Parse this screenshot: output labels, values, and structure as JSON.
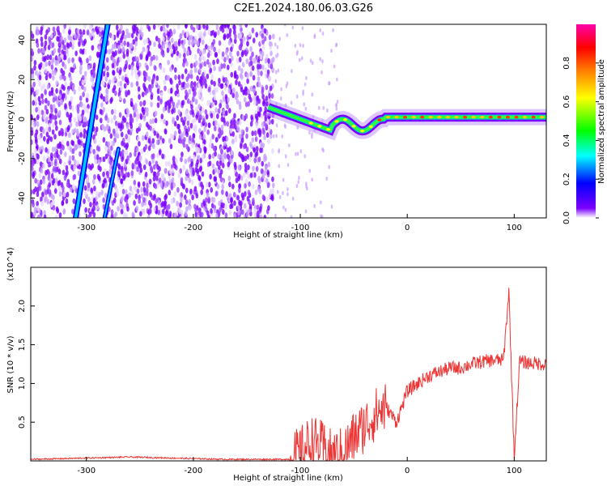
{
  "title": "C2E1.2024.180.06.03.G26",
  "colors": {
    "snr_line": "#ee3333",
    "frame": "#000000"
  },
  "chart_data": [
    {
      "type": "heatmap",
      "xlabel": "Height of straight line (km)",
      "ylabel": "Frequency (Hz)",
      "xlim": [
        -352,
        130
      ],
      "ylim": [
        -50,
        48
      ],
      "xticks": [
        -300,
        -200,
        -100,
        0,
        100
      ],
      "yticks": [
        -40,
        -20,
        0,
        20,
        40
      ],
      "colorbar": {
        "label": "Normalized spectral amplitude",
        "range": [
          0.0,
          1.0
        ],
        "ticks": [
          0.0,
          0.2,
          0.4,
          0.6,
          0.8
        ],
        "colors": [
          "#ffffff",
          "#7b00ff",
          "#0000ff",
          "#00ffff",
          "#00ff00",
          "#ffff00",
          "#ff8800",
          "#ff0000",
          "#ff00aa"
        ]
      },
      "features": [
        {
          "name": "diagonal streak 1",
          "x": [
            -310,
            -280
          ],
          "y": [
            -50,
            48
          ],
          "amplitude": 0.25
        },
        {
          "name": "diagonal streak 2",
          "x": [
            -283,
            -270
          ],
          "y": [
            -50,
            -15
          ],
          "amplitude": 0.15
        },
        {
          "name": "dense noise region",
          "x": [
            -352,
            -125
          ],
          "y": [
            -50,
            48
          ],
          "amplitude": 0.05
        },
        {
          "name": "main band",
          "x": [
            -130,
            130
          ],
          "y": [
            -2,
            4
          ],
          "amplitude": 0.9
        }
      ]
    },
    {
      "type": "line",
      "xlabel": "Height of straight line (km)",
      "ylabel": "SNR (10 * v/v)",
      "yscale_label": "(x10^4)",
      "xlim": [
        -352,
        130
      ],
      "ylim": [
        0.0,
        2.5
      ],
      "xticks": [
        -300,
        -200,
        -100,
        0,
        100
      ],
      "yticks": [
        0.5,
        1.0,
        1.5,
        2.0
      ],
      "series": [
        {
          "x": [
            -352,
            -320,
            -290,
            -260,
            -230,
            -200,
            -170,
            -140,
            -110,
            -100,
            -90,
            -80,
            -70,
            -60,
            -50,
            -40,
            -30,
            -20,
            -10,
            0,
            10,
            20,
            30,
            40,
            50,
            60,
            70,
            80,
            90,
            95,
            100,
            105,
            110,
            120,
            130
          ],
          "y": [
            0.02,
            0.03,
            0.04,
            0.05,
            0.04,
            0.03,
            0.02,
            0.02,
            0.02,
            0.1,
            0.25,
            0.18,
            0.05,
            0.1,
            0.3,
            0.45,
            0.6,
            0.7,
            0.5,
            0.9,
            1.0,
            1.1,
            1.15,
            1.2,
            1.2,
            1.25,
            1.28,
            1.3,
            1.3,
            2.2,
            0.05,
            1.28,
            1.27,
            1.26,
            1.25
          ]
        }
      ]
    }
  ]
}
